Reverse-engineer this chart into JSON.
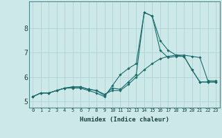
{
  "xlabel": "Humidex (Indice chaleur)",
  "bg_color": "#cce8e8",
  "line_color": "#1a6b6b",
  "marker_color": "#1a6b6b",
  "grid_color": "#aacfcf",
  "xlim": [
    -0.5,
    23.5
  ],
  "ylim": [
    4.75,
    9.1
  ],
  "yticks": [
    5,
    6,
    7,
    8
  ],
  "xticks": [
    0,
    1,
    2,
    3,
    4,
    5,
    6,
    7,
    8,
    9,
    10,
    11,
    12,
    13,
    14,
    15,
    16,
    17,
    18,
    19,
    20,
    21,
    22,
    23
  ],
  "series": [
    [
      5.2,
      5.35,
      5.35,
      5.45,
      5.55,
      5.55,
      5.55,
      5.45,
      5.35,
      5.2,
      5.65,
      6.1,
      6.35,
      6.55,
      8.65,
      8.5,
      7.1,
      6.8,
      6.85,
      6.85,
      6.3,
      5.8,
      5.8,
      5.8
    ],
    [
      5.2,
      5.35,
      5.35,
      5.45,
      5.55,
      5.6,
      5.6,
      5.5,
      5.45,
      5.3,
      5.45,
      5.45,
      5.7,
      6.0,
      6.3,
      6.55,
      6.75,
      6.85,
      6.9,
      6.9,
      6.85,
      6.8,
      5.85,
      5.85
    ],
    [
      5.2,
      5.35,
      5.35,
      5.45,
      5.55,
      5.6,
      5.6,
      5.5,
      5.45,
      5.25,
      5.55,
      5.5,
      5.8,
      6.1,
      8.65,
      8.5,
      7.5,
      7.1,
      6.9,
      6.85,
      6.3,
      5.8,
      5.8,
      5.8
    ]
  ]
}
